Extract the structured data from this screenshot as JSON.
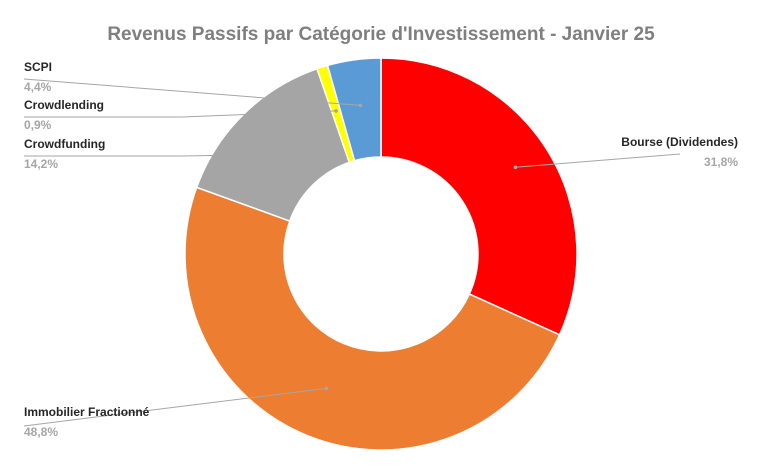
{
  "chart_data": {
    "type": "pie",
    "variant": "doughnut",
    "title": "Revenus Passifs par Catégorie d'Investissement - Janvier 25",
    "slices": [
      {
        "label": "Bourse (Dividendes)",
        "value": 31.8,
        "value_label": "31,8%",
        "color": "#ff0000"
      },
      {
        "label": "Immobilier Fractionné",
        "value": 48.8,
        "value_label": "48,8%",
        "color": "#ed7d31"
      },
      {
        "label": "Crowdfunding",
        "value": 14.2,
        "value_label": "14,2%",
        "color": "#a5a5a5"
      },
      {
        "label": "Crowdlending",
        "value": 0.9,
        "value_label": "0,9%",
        "color": "#ffff00"
      },
      {
        "label": "SCPI",
        "value": 4.4,
        "value_label": "4,4%",
        "color": "#5b9bd5"
      }
    ],
    "start_angle": "top, clockwise",
    "legend": "none",
    "labels": "outside with leader lines"
  }
}
